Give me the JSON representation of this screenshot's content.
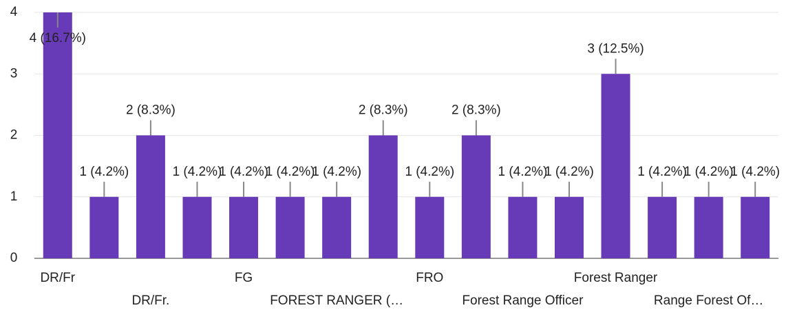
{
  "chart_data": {
    "type": "bar",
    "categories": [
      "DR/Fr",
      null,
      "DR/Fr.",
      null,
      "FG",
      null,
      "FOREST RANGER (…",
      null,
      "FRO",
      null,
      "Forest Range Officer",
      null,
      "Forest Ranger",
      null,
      "Range Forest Of…",
      null
    ],
    "values": [
      4,
      1,
      2,
      1,
      1,
      1,
      1,
      2,
      1,
      2,
      1,
      1,
      3,
      1,
      1,
      1
    ],
    "value_labels": [
      "4 (16.7%)",
      "1 (4.2%)",
      "2 (8.3%)",
      "1 (4.2%)",
      "1 (4.2%)",
      "1 (4.2%)",
      "1 (4.2%)",
      "2 (8.3%)",
      "1 (4.2%)",
      "2 (8.3%)",
      "1 (4.2%)",
      "1 (4.2%)",
      "3 (12.5%)",
      "1 (4.2%)",
      "1 (4.2%)",
      "1 (4.2%)"
    ],
    "color": "#673ab7",
    "ylim": [
      0,
      4
    ],
    "yticks": [
      0,
      1,
      2,
      3,
      4
    ],
    "grid": true
  }
}
